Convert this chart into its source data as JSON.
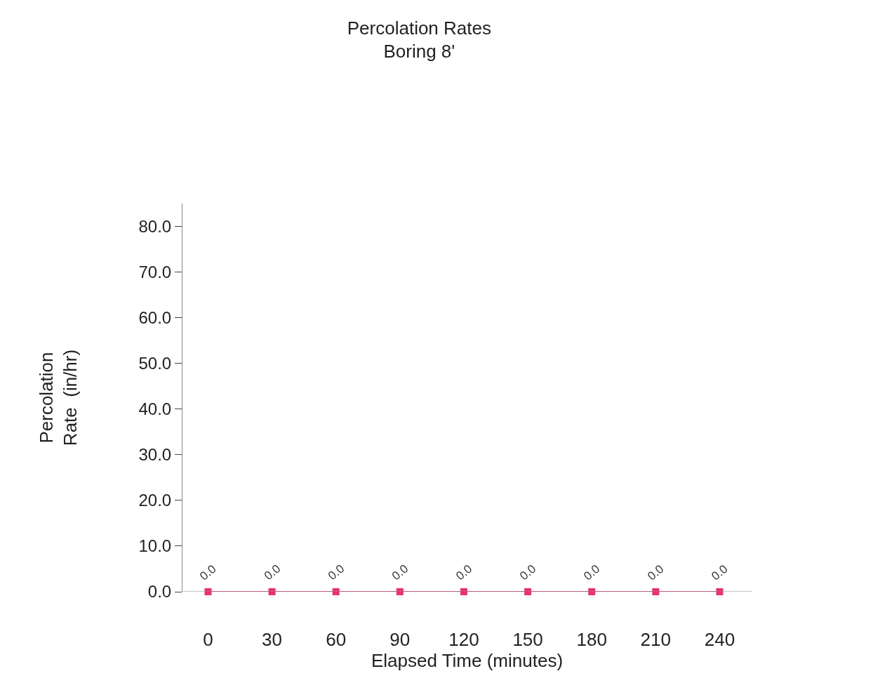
{
  "chart_data": {
    "type": "line",
    "title": "Percolation Rates\nBoring 8'",
    "xlabel": "Elapsed Time (minutes)",
    "ylabel": "Percolation\nRate  (in/hr)",
    "categories": [
      "0",
      "30",
      "60",
      "90",
      "120",
      "150",
      "180",
      "210",
      "240"
    ],
    "series": [
      {
        "color": "#e8336a",
        "values": [
          0,
          0,
          0,
          0,
          0,
          0,
          0,
          0,
          0
        ]
      }
    ],
    "value_labels": [
      "0.0",
      "0.0",
      "0.0",
      "0.0",
      "0.0",
      "0.0",
      "0.0",
      "0.0",
      "0.0"
    ],
    "ylim": [
      0,
      85
    ],
    "yticks": [
      {
        "value": 0,
        "label": "0.0"
      },
      {
        "value": 10,
        "label": "10.0"
      },
      {
        "value": 20,
        "label": "20.0"
      },
      {
        "value": 30,
        "label": "30.0"
      },
      {
        "value": 40,
        "label": "40.0"
      },
      {
        "value": 50,
        "label": "50.0"
      },
      {
        "value": 60,
        "label": "60.0"
      },
      {
        "value": 70,
        "label": "70.0"
      },
      {
        "value": 80,
        "label": "80.0"
      }
    ],
    "marker": "square",
    "line_style": "solid"
  }
}
